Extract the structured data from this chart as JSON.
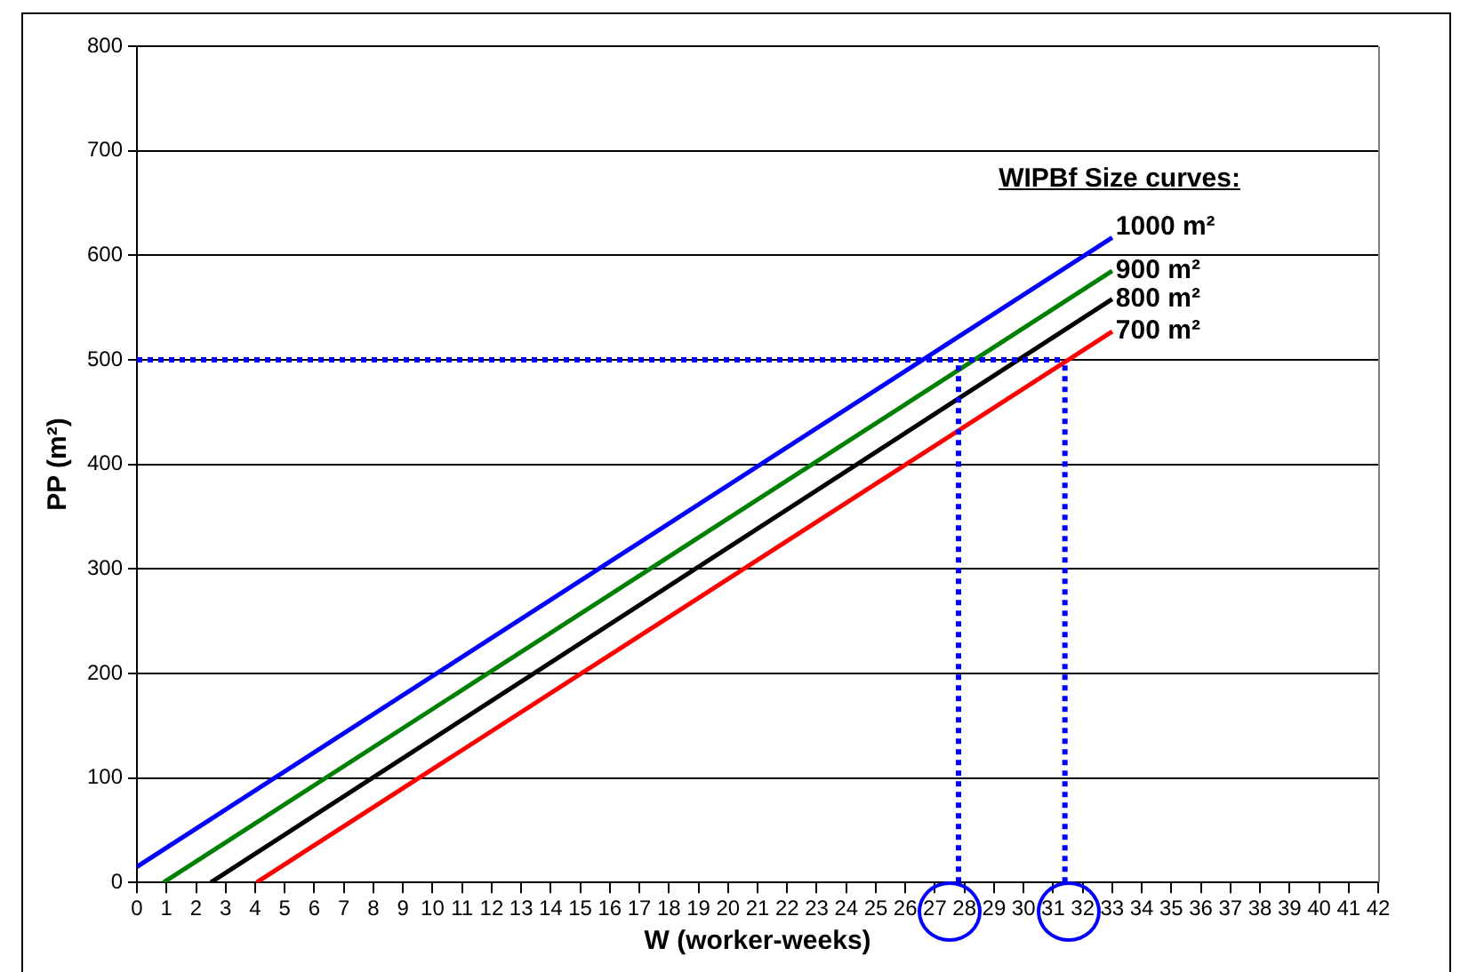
{
  "chart_data": {
    "type": "line",
    "xlabel": "W (worker-weeks)",
    "ylabel": "PP (m²)",
    "legend_title": "WIPBf Size curves:",
    "xlim": [
      0,
      42
    ],
    "xticks": [
      0,
      1,
      2,
      3,
      4,
      5,
      6,
      7,
      8,
      9,
      10,
      11,
      12,
      13,
      14,
      15,
      16,
      17,
      18,
      19,
      20,
      21,
      22,
      23,
      24,
      25,
      26,
      27,
      28,
      29,
      30,
      31,
      32,
      33,
      34,
      35,
      36,
      37,
      38,
      39,
      40,
      41,
      42
    ],
    "ylim": [
      0,
      800
    ],
    "yticks": [
      0,
      100,
      200,
      300,
      400,
      500,
      600,
      700,
      800
    ],
    "grid": "y",
    "legend": false,
    "marker": "none",
    "line_style": "solid",
    "series": [
      {
        "name": "1000 m²",
        "color": "#0000ff",
        "x": [
          0,
          33
        ],
        "values": [
          15,
          617
        ]
      },
      {
        "name": "900 m²",
        "color": "#008000",
        "x": [
          0.9,
          33
        ],
        "values": [
          0,
          585
        ]
      },
      {
        "name": "800 m²",
        "color": "#000000",
        "x": [
          2.5,
          33
        ],
        "values": [
          0,
          558
        ]
      },
      {
        "name": "700 m²",
        "color": "#ff0000",
        "x": [
          4.05,
          33
        ],
        "values": [
          0,
          527
        ]
      }
    ],
    "ref_lines": [
      {
        "axis": "y",
        "value": 500,
        "color": "#0000ff",
        "line_style": "dotted"
      },
      {
        "axis": "x",
        "value": 27.8,
        "color": "#0000ff",
        "line_style": "dotted"
      },
      {
        "axis": "x",
        "value": 31.4,
        "color": "#0000ff",
        "line_style": "dotted"
      }
    ]
  }
}
